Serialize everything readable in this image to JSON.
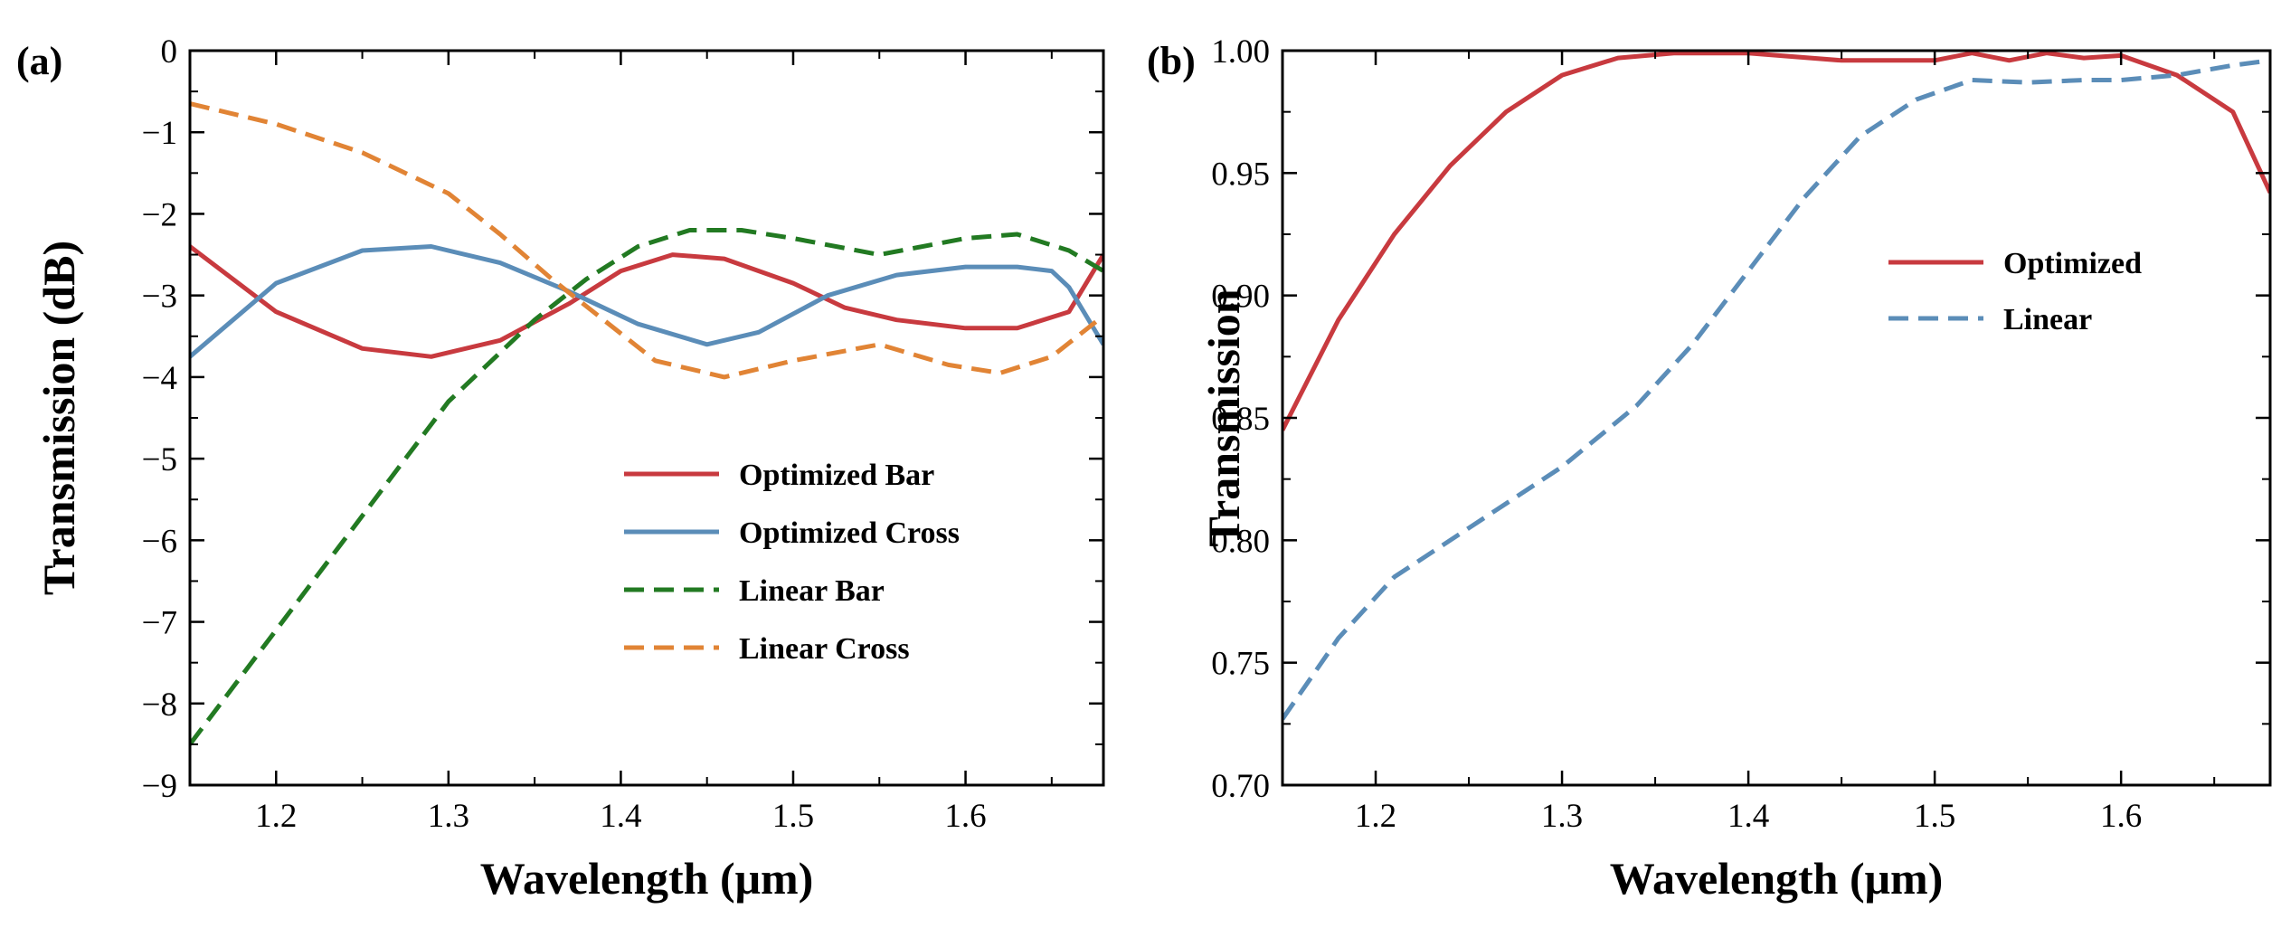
{
  "figure": {
    "panels": [
      "(a)",
      "(b)"
    ]
  },
  "chart_data": [
    {
      "type": "line",
      "panel": "(a)",
      "title": "",
      "xlabel": "Wavelength (μm)",
      "ylabel": "Transmission (dB)",
      "xlim": [
        1.15,
        1.68
      ],
      "ylim": [
        -9,
        0
      ],
      "xticks": [
        1.2,
        1.3,
        1.4,
        1.5,
        1.6
      ],
      "xtick_labels": [
        "1.2",
        "1.3",
        "1.4",
        "1.5",
        "1.6"
      ],
      "yticks": [
        0,
        -1,
        -2,
        -3,
        -4,
        -5,
        -6,
        -7,
        -8,
        -9
      ],
      "ytick_labels": [
        "0",
        "−1",
        "−2",
        "−3",
        "−4",
        "−5",
        "−6",
        "−7",
        "−8",
        "−9"
      ],
      "legend_position": "lower-right",
      "series": [
        {
          "name": "Optimized Bar",
          "color": "#c83a3f",
          "dash": "solid",
          "x": [
            1.15,
            1.2,
            1.25,
            1.29,
            1.33,
            1.37,
            1.4,
            1.43,
            1.46,
            1.5,
            1.53,
            1.56,
            1.6,
            1.63,
            1.66,
            1.68
          ],
          "y": [
            -2.4,
            -3.2,
            -3.65,
            -3.75,
            -3.55,
            -3.1,
            -2.7,
            -2.5,
            -2.55,
            -2.85,
            -3.15,
            -3.3,
            -3.4,
            -3.4,
            -3.2,
            -2.5
          ]
        },
        {
          "name": "Optimized Cross",
          "color": "#5b8db8",
          "dash": "solid",
          "x": [
            1.15,
            1.2,
            1.25,
            1.29,
            1.33,
            1.37,
            1.41,
            1.45,
            1.48,
            1.52,
            1.56,
            1.6,
            1.63,
            1.65,
            1.66,
            1.68
          ],
          "y": [
            -3.75,
            -2.85,
            -2.45,
            -2.4,
            -2.6,
            -2.95,
            -3.35,
            -3.6,
            -3.45,
            -3.0,
            -2.75,
            -2.65,
            -2.65,
            -2.7,
            -2.9,
            -3.6
          ]
        },
        {
          "name": "Linear Bar",
          "color": "#227a22",
          "dash": "dashed",
          "x": [
            1.15,
            1.2,
            1.25,
            1.3,
            1.35,
            1.38,
            1.41,
            1.44,
            1.47,
            1.5,
            1.55,
            1.6,
            1.63,
            1.66,
            1.68
          ],
          "y": [
            -8.5,
            -7.1,
            -5.7,
            -4.3,
            -3.3,
            -2.8,
            -2.4,
            -2.2,
            -2.2,
            -2.3,
            -2.5,
            -2.3,
            -2.25,
            -2.45,
            -2.7
          ]
        },
        {
          "name": "Linear Cross",
          "color": "#e18435",
          "dash": "dashed",
          "x": [
            1.15,
            1.2,
            1.25,
            1.3,
            1.33,
            1.36,
            1.39,
            1.42,
            1.46,
            1.5,
            1.55,
            1.59,
            1.62,
            1.65,
            1.68
          ],
          "y": [
            -0.65,
            -0.9,
            -1.25,
            -1.75,
            -2.25,
            -2.8,
            -3.3,
            -3.8,
            -4.0,
            -3.8,
            -3.6,
            -3.85,
            -3.95,
            -3.75,
            -3.25
          ]
        }
      ]
    },
    {
      "type": "line",
      "panel": "(b)",
      "title": "",
      "xlabel": "Wavelength (μm)",
      "ylabel": "Transmission",
      "xlim": [
        1.15,
        1.68
      ],
      "ylim": [
        0.7,
        1.0
      ],
      "xticks": [
        1.2,
        1.3,
        1.4,
        1.5,
        1.6
      ],
      "xtick_labels": [
        "1.2",
        "1.3",
        "1.4",
        "1.5",
        "1.6"
      ],
      "yticks": [
        1.0,
        0.95,
        0.9,
        0.85,
        0.8,
        0.75,
        0.7
      ],
      "ytick_labels": [
        "1.00",
        "0.95",
        "0.90",
        "0.85",
        "0.80",
        "0.75",
        "0.70"
      ],
      "legend_position": "center-right",
      "series": [
        {
          "name": "Optimized",
          "color": "#c83a3f",
          "dash": "solid",
          "x": [
            1.15,
            1.18,
            1.21,
            1.24,
            1.27,
            1.3,
            1.33,
            1.36,
            1.4,
            1.45,
            1.48,
            1.5,
            1.52,
            1.54,
            1.56,
            1.58,
            1.6,
            1.63,
            1.66,
            1.68
          ],
          "y": [
            0.845,
            0.89,
            0.925,
            0.953,
            0.975,
            0.99,
            0.997,
            0.999,
            0.999,
            0.996,
            0.996,
            0.996,
            0.999,
            0.996,
            0.999,
            0.997,
            0.998,
            0.99,
            0.975,
            0.942
          ]
        },
        {
          "name": "Linear",
          "color": "#5b8db8",
          "dash": "dashed",
          "x": [
            1.15,
            1.18,
            1.21,
            1.25,
            1.3,
            1.34,
            1.37,
            1.4,
            1.43,
            1.46,
            1.49,
            1.52,
            1.55,
            1.58,
            1.6,
            1.63,
            1.66,
            1.68
          ],
          "y": [
            0.727,
            0.76,
            0.785,
            0.805,
            0.83,
            0.855,
            0.88,
            0.91,
            0.94,
            0.965,
            0.98,
            0.988,
            0.987,
            0.988,
            0.988,
            0.99,
            0.994,
            0.996
          ]
        }
      ]
    }
  ]
}
